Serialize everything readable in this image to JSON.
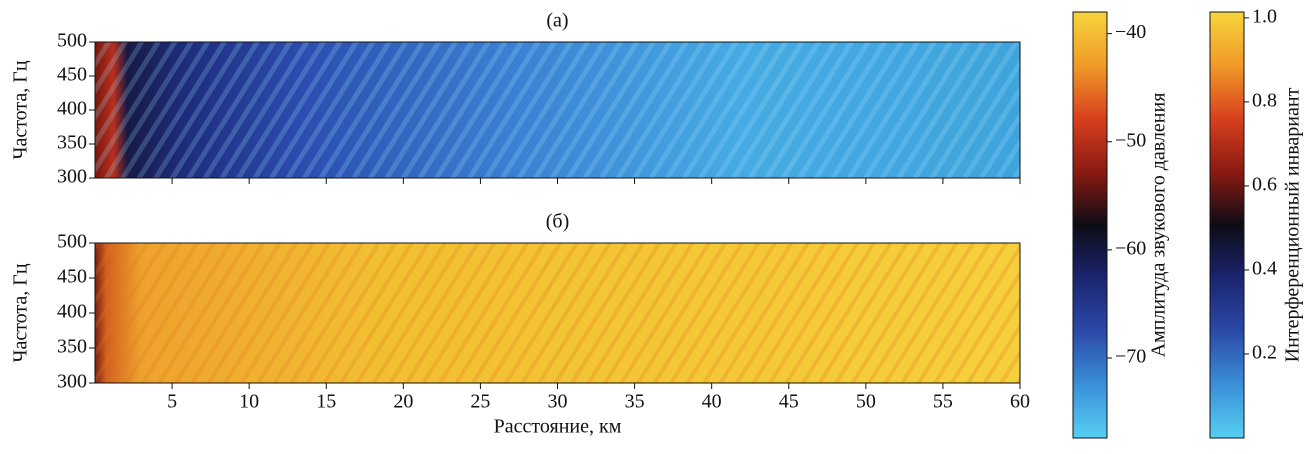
{
  "chart_data": [
    {
      "type": "heatmap",
      "title": "(а)",
      "ylabel": "Частота, Гц",
      "xlim": [
        0,
        60
      ],
      "xticks": [
        5,
        10,
        15,
        20,
        25,
        30,
        35,
        40,
        45,
        50,
        55,
        60
      ],
      "xtick_labels": false,
      "ylim": [
        300,
        500
      ],
      "yticks": [
        300,
        350,
        400,
        450,
        500
      ],
      "colorbar": {
        "label": "Амплитуда звукового давления",
        "lim": [
          -77.4,
          -38
        ],
        "ticks": [
          {
            "value": -40,
            "label": "−40"
          },
          {
            "value": -50,
            "label": "−50"
          },
          {
            "value": -60,
            "label": "−60"
          },
          {
            "value": -70,
            "label": "−70"
          }
        ],
        "colormap": [
          "#56d0f2",
          "#3a8fd8",
          "#2b4aa8",
          "#1b2470",
          "#0c0c14",
          "#8a1a12",
          "#d8401e",
          "#f09a28",
          "#f7d43c"
        ]
      }
    },
    {
      "type": "heatmap",
      "title": "(б)",
      "ylabel": "Частота, Гц",
      "xlabel": "Расстояние, км",
      "xlim": [
        0,
        60
      ],
      "xticks": [
        5,
        10,
        15,
        20,
        25,
        30,
        35,
        40,
        45,
        50,
        55,
        60
      ],
      "xtick_labels": true,
      "ylim": [
        300,
        500
      ],
      "yticks": [
        300,
        350,
        400,
        450,
        500
      ],
      "colorbar": {
        "label": "Интерференционный инвариант",
        "lim": [
          0,
          1.014
        ],
        "ticks": [
          {
            "value": 0.2,
            "label": "0.2"
          },
          {
            "value": 0.4,
            "label": "0.4"
          },
          {
            "value": 0.6,
            "label": "0.6"
          },
          {
            "value": 0.8,
            "label": "0.8"
          },
          {
            "value": 1,
            "label": "1.0"
          }
        ],
        "colormap": [
          "#56d0f2",
          "#3a8fd8",
          "#2b4aa8",
          "#1b2470",
          "#0c0c14",
          "#8a1a12",
          "#d8401e",
          "#f09a28",
          "#f7d43c"
        ]
      }
    }
  ]
}
